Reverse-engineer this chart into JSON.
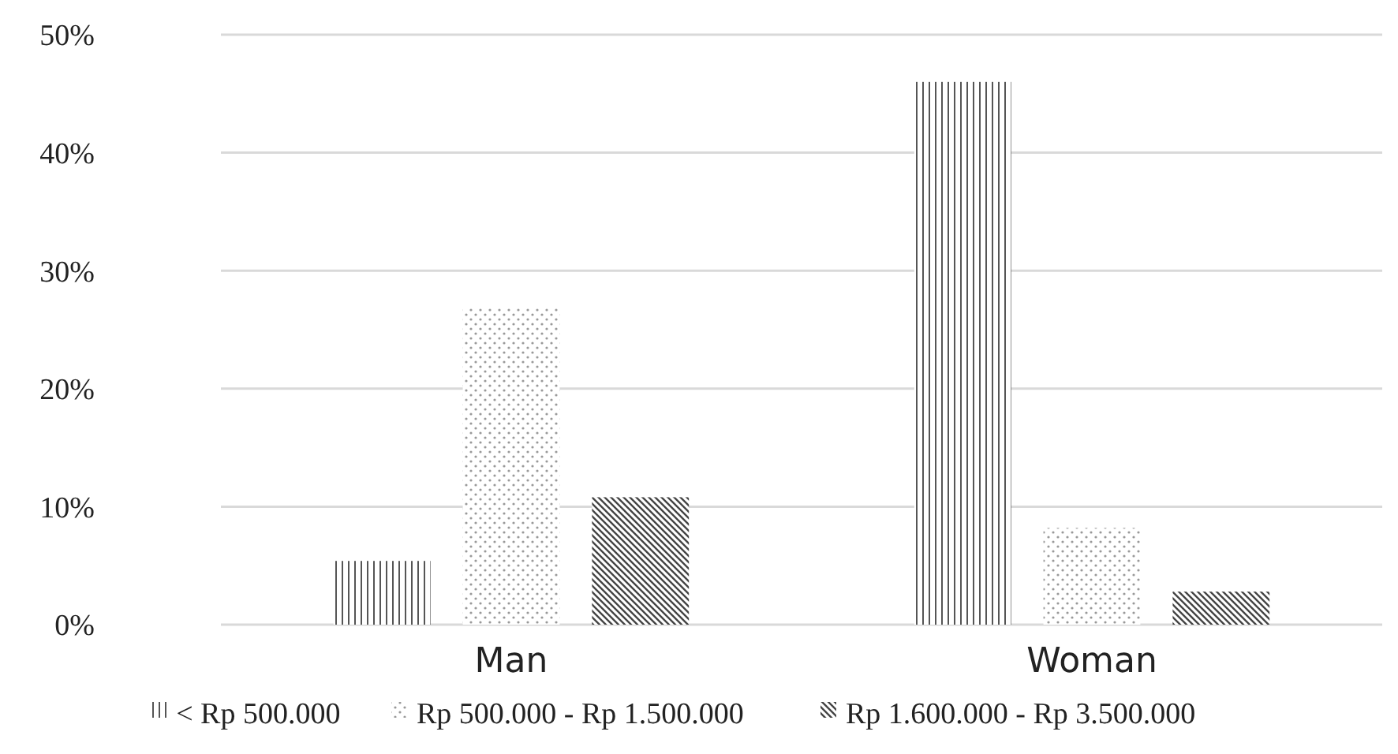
{
  "chart_data": {
    "type": "bar",
    "categories": [
      "Man",
      "Woman"
    ],
    "series": [
      {
        "name": "< Rp 500.000",
        "color": "#555555",
        "values": [
          5.4,
          46.0
        ]
      },
      {
        "name": "Rp 500.000 - Rp 1.500.000",
        "color": "#999999",
        "values": [
          26.8,
          8.2
        ]
      },
      {
        "name": "Rp 1.600.000 - Rp 3.500.000",
        "color": "#444444",
        "values": [
          10.8,
          2.8
        ]
      }
    ],
    "ylim": [
      0,
      50
    ],
    "yticks": [
      {
        "value": 0,
        "label": "0%"
      },
      {
        "value": 10,
        "label": "10%"
      },
      {
        "value": 20,
        "label": "20%"
      },
      {
        "value": 30,
        "label": "30%"
      },
      {
        "value": 40,
        "label": "40%"
      },
      {
        "value": 50,
        "label": "50%"
      }
    ],
    "grid": "y",
    "legend": "bottom"
  }
}
